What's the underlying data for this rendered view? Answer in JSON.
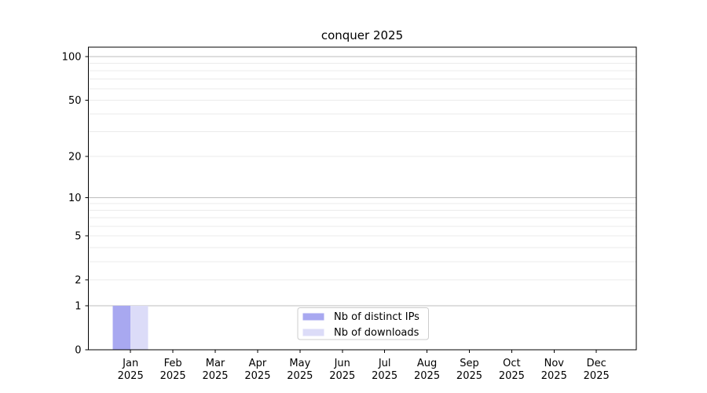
{
  "figure": {
    "title": "conquer 2025"
  },
  "chart_data": {
    "type": "bar",
    "title": "conquer 2025",
    "categories": [
      "Jan",
      "Feb",
      "Mar",
      "Apr",
      "May",
      "Jun",
      "Jul",
      "Aug",
      "Sep",
      "Oct",
      "Nov",
      "Dec"
    ],
    "x_tick_year": "2025",
    "series": [
      {
        "name": "Nb of distinct IPs",
        "color": "#a8a8f0",
        "values": [
          1,
          0,
          0,
          0,
          0,
          0,
          0,
          0,
          0,
          0,
          0,
          0
        ]
      },
      {
        "name": "Nb of downloads",
        "color": "#dcdcf8",
        "values": [
          1,
          0,
          0,
          0,
          0,
          0,
          0,
          0,
          0,
          0,
          0,
          0
        ]
      }
    ],
    "xlabel": "",
    "ylabel": "",
    "y_axis": {
      "scale": "log(1+y)",
      "tick_values": [
        0,
        1,
        2,
        5,
        10,
        20,
        50,
        100
      ],
      "tick_labels": [
        "0",
        "1",
        "2",
        "5",
        "10",
        "20",
        "50",
        "100"
      ],
      "major_gridlines": [
        1,
        10,
        100
      ],
      "minor_gridlines": [
        2,
        3,
        4,
        5,
        6,
        7,
        8,
        9,
        20,
        30,
        40,
        50,
        60,
        70,
        80,
        90
      ],
      "ylim": [
        0,
        115
      ]
    },
    "grid": true,
    "legend": {
      "position": "lower center",
      "entries": [
        "Nb of distinct IPs",
        "Nb of downloads"
      ]
    }
  },
  "colors": {
    "background": "#ffffff",
    "axis": "#000000",
    "major_grid": "#bdbdbd",
    "minor_grid": "#ebebeb",
    "legend_border": "#cccccc",
    "legend_background": "#ffffff",
    "bar_distinct_ips": "#a8a8f0",
    "bar_downloads": "#dcdcf8"
  }
}
